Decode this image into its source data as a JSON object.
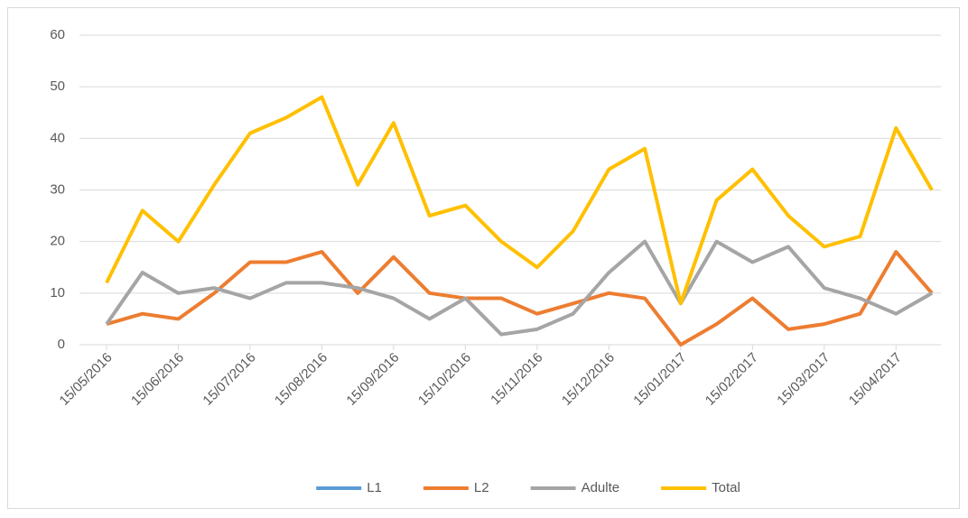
{
  "chart_data": {
    "type": "line",
    "categories": [
      "15/05/2016",
      null,
      "15/06/2016",
      null,
      "15/07/2016",
      null,
      "15/08/2016",
      null,
      "15/09/2016",
      null,
      "15/10/2016",
      null,
      "15/11/2016",
      null,
      "15/12/2016",
      null,
      "15/01/2017",
      null,
      "15/02/2017",
      null,
      "15/03/2017",
      null,
      "15/04/2017",
      null
    ],
    "series": [
      {
        "name": "L1",
        "color": "#5b9bd5",
        "values": [
          null,
          null,
          null,
          null,
          null,
          null,
          null,
          null,
          null,
          null,
          null,
          null,
          null,
          null,
          null,
          null,
          null,
          null,
          null,
          null,
          null,
          null,
          null,
          null
        ]
      },
      {
        "name": "L2",
        "color": "#ed7d31",
        "values": [
          4,
          6,
          5,
          10,
          16,
          16,
          18,
          10,
          17,
          10,
          9,
          9,
          6,
          8,
          10,
          9,
          0,
          4,
          9,
          3,
          4,
          6,
          18,
          10
        ]
      },
      {
        "name": "Adulte",
        "color": "#a5a5a5",
        "values": [
          4,
          14,
          10,
          11,
          9,
          12,
          12,
          11,
          9,
          5,
          9,
          2,
          3,
          6,
          14,
          20,
          8,
          20,
          16,
          19,
          11,
          9,
          6,
          10
        ]
      },
      {
        "name": "Total",
        "color": "#ffc000",
        "values": [
          12,
          26,
          20,
          31,
          41,
          44,
          48,
          31,
          43,
          25,
          27,
          20,
          15,
          22,
          34,
          38,
          8,
          28,
          34,
          25,
          19,
          21,
          42,
          30
        ]
      }
    ],
    "ylim": [
      0,
      60
    ],
    "yticks": [
      0,
      10,
      20,
      30,
      40,
      50,
      60
    ],
    "grid": true,
    "legend": "bottom"
  }
}
